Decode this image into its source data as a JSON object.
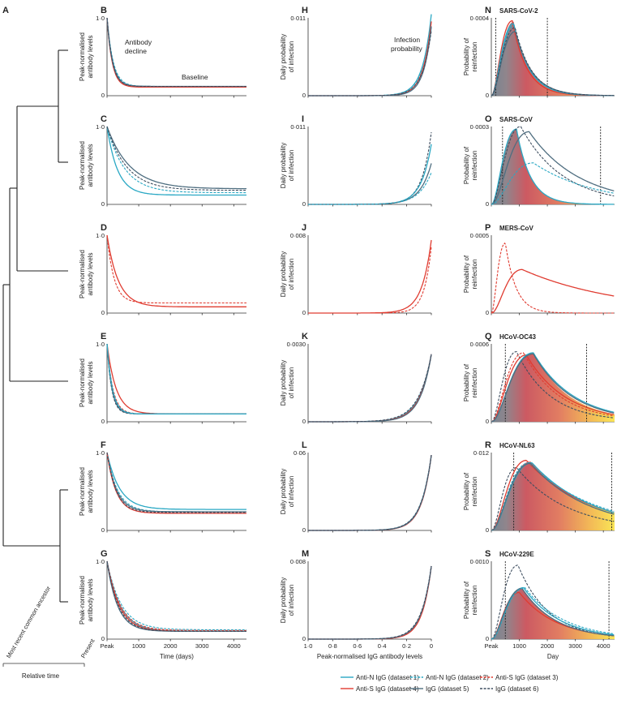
{
  "colors": {
    "anti_n_1": "#2aa8c4",
    "anti_n_2": "#2aa8c4",
    "anti_s_3": "#e03c31",
    "anti_s_4": "#e03c31",
    "igg_5": "#4f6e80",
    "igg_6": "#3e4e60"
  },
  "legend": [
    {
      "label": "Anti-N IgG (dataset 1)",
      "key": "anti_n_1",
      "dash": false
    },
    {
      "label": "Anti-N IgG (dataset 2)",
      "key": "anti_n_2",
      "dash": true
    },
    {
      "label": "Anti-S IgG (dataset 3)",
      "key": "anti_s_3",
      "dash": true
    },
    {
      "label": "Anti-S IgG (dataset 4)",
      "key": "anti_s_4",
      "dash": false
    },
    {
      "label": "IgG (dataset 5)",
      "key": "igg_5",
      "dash": false
    },
    {
      "label": "IgG (dataset 6)",
      "key": "igg_6",
      "dash": true
    }
  ],
  "tree": {
    "label": "A",
    "x_axis": {
      "ticks": [
        "Most recent common ancestor",
        "Present"
      ],
      "label": "Relative time"
    }
  },
  "columns": {
    "decline": {
      "ylabel": "Peak-normalised antibody levels",
      "xlabel": "Time (days)",
      "xticks": [
        "Peak",
        "1000",
        "2000",
        "3000",
        "4000"
      ],
      "yticks": [
        "0",
        "1·0"
      ],
      "annotation_decline": "Antibody decline",
      "annotation_baseline": "Baseline"
    },
    "infection": {
      "ylabel": "Daily probability of infection",
      "xlabel": "Peak-normalised IgG antibody levels",
      "xticks": [
        "1·0",
        "0·8",
        "0·6",
        "0·4",
        "0·2",
        "0"
      ],
      "annotation": "Infection probability"
    },
    "reinfection": {
      "ylabel": "Probability of reinfection",
      "xlabel": "Day",
      "xticks": [
        "Peak",
        "1000",
        "2000",
        "3000",
        "4000"
      ]
    }
  },
  "chart_data": [
    {
      "type": "line",
      "panel": "B",
      "virus": "SARS-CoV-2",
      "ylim": [
        0,
        1
      ],
      "xlim": [
        0,
        4400
      ],
      "series": [
        {
          "key": "anti_n_1",
          "baseline": 0.11,
          "rate": 0.0055
        },
        {
          "key": "anti_n_2",
          "baseline": 0.12,
          "rate": 0.0052
        },
        {
          "key": "anti_s_4",
          "baseline": 0.11,
          "rate": 0.0062
        },
        {
          "key": "igg_5",
          "baseline": 0.12,
          "rate": 0.0058
        },
        {
          "key": "igg_6",
          "baseline": 0.12,
          "rate": 0.006
        }
      ]
    },
    {
      "type": "line",
      "panel": "C",
      "virus": "SARS-CoV",
      "ylim": [
        0,
        1
      ],
      "xlim": [
        0,
        4400
      ],
      "series": [
        {
          "key": "anti_n_1",
          "baseline": 0.12,
          "rate": 0.003
        },
        {
          "key": "anti_n_2",
          "baseline": 0.15,
          "rate": 0.0018
        },
        {
          "key": "igg_5",
          "baseline": 0.2,
          "rate": 0.0014
        },
        {
          "key": "igg_6",
          "baseline": 0.18,
          "rate": 0.0016
        }
      ]
    },
    {
      "type": "line",
      "panel": "D",
      "virus": "MERS-CoV",
      "ylim": [
        0,
        1
      ],
      "xlim": [
        0,
        4400
      ],
      "series": [
        {
          "key": "anti_s_4",
          "baseline": 0.08,
          "rate": 0.0028
        },
        {
          "key": "anti_s_3",
          "baseline": 0.13,
          "rate": 0.0045
        }
      ]
    },
    {
      "type": "line",
      "panel": "E",
      "virus": "HCoV-OC43",
      "ylim": [
        0,
        1
      ],
      "xlim": [
        0,
        4400
      ],
      "series": [
        {
          "key": "anti_s_4",
          "baseline": 0.1,
          "rate": 0.0035
        },
        {
          "key": "anti_s_3",
          "baseline": 0.1,
          "rate": 0.0055
        },
        {
          "key": "igg_5",
          "baseline": 0.1,
          "rate": 0.0065
        },
        {
          "key": "igg_6",
          "baseline": 0.1,
          "rate": 0.007
        },
        {
          "key": "anti_n_1",
          "baseline": 0.1,
          "rate": 0.006
        }
      ]
    },
    {
      "type": "line",
      "panel": "F",
      "virus": "HCoV-NL63",
      "ylim": [
        0,
        1
      ],
      "xlim": [
        0,
        4400
      ],
      "series": [
        {
          "key": "anti_n_1",
          "baseline": 0.27,
          "rate": 0.0025
        },
        {
          "key": "anti_n_2",
          "baseline": 0.24,
          "rate": 0.003
        },
        {
          "key": "igg_5",
          "baseline": 0.24,
          "rate": 0.0033
        },
        {
          "key": "anti_s_4",
          "baseline": 0.22,
          "rate": 0.0035
        },
        {
          "key": "igg_6",
          "baseline": 0.23,
          "rate": 0.0035
        }
      ]
    },
    {
      "type": "line",
      "panel": "G",
      "virus": "HCoV-229E",
      "ylim": [
        0,
        1
      ],
      "xlim": [
        0,
        4400
      ],
      "series": [
        {
          "key": "anti_n_1",
          "baseline": 0.1,
          "rate": 0.0024
        },
        {
          "key": "anti_n_2",
          "baseline": 0.12,
          "rate": 0.0022
        },
        {
          "key": "anti_s_4",
          "baseline": 0.1,
          "rate": 0.0026
        },
        {
          "key": "anti_s_3",
          "baseline": 0.11,
          "rate": 0.0024
        },
        {
          "key": "igg_5",
          "baseline": 0.1,
          "rate": 0.003
        },
        {
          "key": "igg_6",
          "baseline": 0.1,
          "rate": 0.0028
        }
      ]
    },
    {
      "type": "line",
      "panel": "H",
      "ylim": [
        0,
        0.011
      ],
      "ytick_label": "0·011",
      "series": [
        {
          "key": "anti_n_1",
          "end": 0.0115,
          "k": 14
        },
        {
          "key": "anti_n_2",
          "end": 0.0095,
          "k": 13
        },
        {
          "key": "anti_s_4",
          "end": 0.0105,
          "k": 15
        },
        {
          "key": "igg_5",
          "end": 0.0098,
          "k": 16
        },
        {
          "key": "igg_6",
          "end": 0.0092,
          "k": 14
        }
      ]
    },
    {
      "type": "line",
      "panel": "I",
      "ylim": [
        0,
        0.011
      ],
      "ytick_label": "0·011",
      "series": [
        {
          "key": "igg_6",
          "end": 0.0102,
          "k": 13
        },
        {
          "key": "anti_n_1",
          "end": 0.0085,
          "k": 12
        },
        {
          "key": "igg_5",
          "end": 0.0058,
          "k": 11
        },
        {
          "key": "anti_n_2",
          "end": 0.0045,
          "k": 10
        }
      ]
    },
    {
      "type": "line",
      "panel": "J",
      "ylim": [
        0,
        0.008
      ],
      "ytick_label": "0·008",
      "series": [
        {
          "key": "anti_s_4",
          "end": 0.0075,
          "k": 13
        },
        {
          "key": "anti_s_3",
          "end": 0.0068,
          "k": 17
        }
      ]
    },
    {
      "type": "line",
      "panel": "K",
      "ylim": [
        0,
        0.003
      ],
      "ytick_label": "0·0030",
      "series": [
        {
          "key": "anti_n_1",
          "end": 0.0026,
          "k": 10
        },
        {
          "key": "anti_s_4",
          "end": 0.0026,
          "k": 10.5
        },
        {
          "key": "igg_5",
          "end": 0.0026,
          "k": 11
        },
        {
          "key": "igg_6",
          "end": 0.0026,
          "k": 9.5
        }
      ]
    },
    {
      "type": "line",
      "panel": "L",
      "ylim": [
        0,
        0.06
      ],
      "ytick_label": "0·06",
      "series": [
        {
          "key": "anti_n_1",
          "end": 0.058,
          "k": 12
        },
        {
          "key": "anti_s_4",
          "end": 0.058,
          "k": 12.5
        },
        {
          "key": "igg_5",
          "end": 0.058,
          "k": 12.2
        },
        {
          "key": "igg_6",
          "end": 0.058,
          "k": 11.8
        }
      ]
    },
    {
      "type": "line",
      "panel": "M",
      "ylim": [
        0,
        0.008
      ],
      "ytick_label": "0·008",
      "series": [
        {
          "key": "anti_n_1",
          "end": 0.0075,
          "k": 13
        },
        {
          "key": "anti_s_4",
          "end": 0.0075,
          "k": 13.5
        },
        {
          "key": "igg_5",
          "end": 0.0075,
          "k": 12.5
        },
        {
          "key": "igg_6",
          "end": 0.0075,
          "k": 12
        }
      ]
    },
    {
      "type": "area",
      "panel": "N",
      "virus": "SARS-CoV-2",
      "ylim": [
        0,
        0.0004
      ],
      "ytick_label": "0·0004",
      "fill_peak": 800,
      "fill_sd": 550,
      "fill_max": 0.00038,
      "bounds": [
        160,
        2000
      ],
      "series": [
        {
          "key": "anti_s_4",
          "peak": 750,
          "w": 520,
          "max": 0.000385
        },
        {
          "key": "anti_n_1",
          "peak": 800,
          "w": 560,
          "max": 0.00037
        },
        {
          "key": "anti_n_2",
          "peak": 820,
          "w": 580,
          "max": 0.00036
        },
        {
          "key": "igg_5",
          "peak": 860,
          "w": 600,
          "max": 0.00033
        },
        {
          "key": "igg_6",
          "peak": 850,
          "w": 590,
          "max": 0.00035
        }
      ]
    },
    {
      "type": "area",
      "panel": "O",
      "virus": "SARS-CoV",
      "ylim": [
        0,
        0.0003
      ],
      "ytick_label": "0·0003",
      "fill_peak": 900,
      "fill_sd": 500,
      "fill_max": 0.00029,
      "bounds": [
        400,
        3900
      ],
      "series": [
        {
          "key": "anti_n_1",
          "peak": 900,
          "w": 500,
          "max": 0.00029
        },
        {
          "key": "igg_6",
          "peak": 1050,
          "w": 1500,
          "max": 0.0003
        },
        {
          "key": "igg_5",
          "peak": 1350,
          "w": 1800,
          "max": 0.00028
        },
        {
          "key": "anti_n_2",
          "peak": 1500,
          "w": 2200,
          "max": 0.00016
        }
      ]
    },
    {
      "type": "line",
      "panel": "P",
      "virus": "MERS-CoV",
      "ylim": [
        0,
        0.0005
      ],
      "ytick_label": "0·0005",
      "series": [
        {
          "key": "anti_s_3",
          "peak": 500,
          "w": 380,
          "max": 0.00045
        },
        {
          "key": "anti_s_4",
          "peak": 1100,
          "w": 3500,
          "max": 0.00028
        }
      ]
    },
    {
      "type": "area",
      "panel": "Q",
      "virus": "HCoV-OC43",
      "ylim": [
        0,
        0.0007
      ],
      "ytick_label": "0·0006",
      "fill_peak": 1500,
      "fill_sd": 1300,
      "fill_max": 0.00062,
      "bounds": [
        500,
        3400
      ],
      "series": [
        {
          "key": "igg_6",
          "peak": 900,
          "w": 1200,
          "max": 0.00063
        },
        {
          "key": "anti_s_4",
          "peak": 1250,
          "w": 1400,
          "max": 0.0006
        },
        {
          "key": "anti_s_3",
          "peak": 1150,
          "w": 1300,
          "max": 0.00062
        },
        {
          "key": "anti_n_1",
          "peak": 1500,
          "w": 1450,
          "max": 0.00062
        },
        {
          "key": "igg_5",
          "peak": 1500,
          "w": 1400,
          "max": 0.00061
        }
      ]
    },
    {
      "type": "area",
      "panel": "R",
      "virus": "HCoV-NL63",
      "ylim": [
        0,
        0.013
      ],
      "ytick_label": "0·012",
      "fill_peak": 1400,
      "fill_sd": 2200,
      "fill_max": 0.0115,
      "bounds": [
        800,
        4300
      ],
      "series": [
        {
          "key": "igg_6",
          "peak": 900,
          "w": 1800,
          "max": 0.0105
        },
        {
          "key": "anti_s_4",
          "peak": 1250,
          "w": 2300,
          "max": 0.0117
        },
        {
          "key": "anti_n_2",
          "peak": 1350,
          "w": 2400,
          "max": 0.0113
        },
        {
          "key": "anti_n_1",
          "peak": 1450,
          "w": 2200,
          "max": 0.0113
        },
        {
          "key": "igg_5",
          "peak": 1400,
          "w": 2100,
          "max": 0.0112
        }
      ]
    },
    {
      "type": "area",
      "panel": "S",
      "virus": "HCoV-229E",
      "ylim": [
        0,
        0.001
      ],
      "ytick_label": "0·0010",
      "fill_peak": 1100,
      "fill_sd": 1200,
      "fill_max": 0.00066,
      "bounds": [
        500,
        4200
      ],
      "series": [
        {
          "key": "igg_6",
          "peak": 950,
          "w": 1100,
          "max": 0.00095
        },
        {
          "key": "anti_s_4",
          "peak": 1000,
          "w": 1300,
          "max": 0.0006
        },
        {
          "key": "anti_n_1",
          "peak": 1150,
          "w": 1300,
          "max": 0.00066
        },
        {
          "key": "igg_5",
          "peak": 1100,
          "w": 1200,
          "max": 0.00065
        },
        {
          "key": "anti_n_2",
          "peak": 1200,
          "w": 1400,
          "max": 0.00066
        }
      ]
    }
  ]
}
